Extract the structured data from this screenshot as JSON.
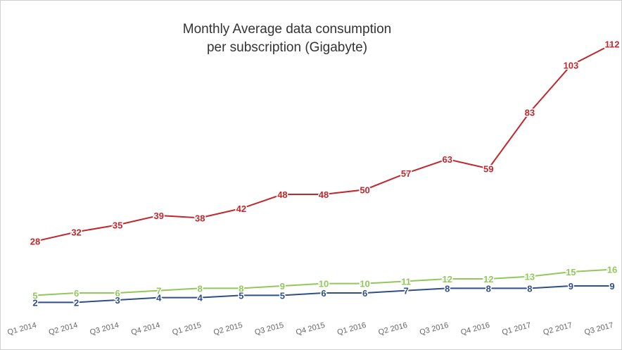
{
  "chart_data": {
    "type": "line",
    "title": [
      "Monthly Average data consumption",
      "per subscription (Gigabyte)"
    ],
    "categories": [
      "Q1 2014",
      "Q2 2014",
      "Q3 2014",
      "Q4 2014",
      "Q1 2015",
      "Q2 2015",
      "Q3 2015",
      "Q4 2015",
      "Q1 2016",
      "Q2 2016",
      "Q3 2016",
      "Q4 2016",
      "Q1 2017",
      "Q2 2017",
      "Q3 2017"
    ],
    "series": [
      {
        "color": "#c0282e",
        "values": [
          28,
          32,
          35,
          39,
          38,
          42,
          48,
          48,
          50,
          57,
          63,
          59,
          83,
          103,
          112
        ]
      },
      {
        "color": "#92c85a",
        "values": [
          5,
          6,
          6,
          7,
          8,
          8,
          9,
          10,
          10,
          11,
          12,
          12,
          13,
          15,
          16
        ]
      },
      {
        "color": "#2f4e8a",
        "values": [
          2,
          2,
          3,
          4,
          4,
          5,
          5,
          6,
          6,
          7,
          8,
          8,
          8,
          9,
          9
        ]
      }
    ]
  }
}
